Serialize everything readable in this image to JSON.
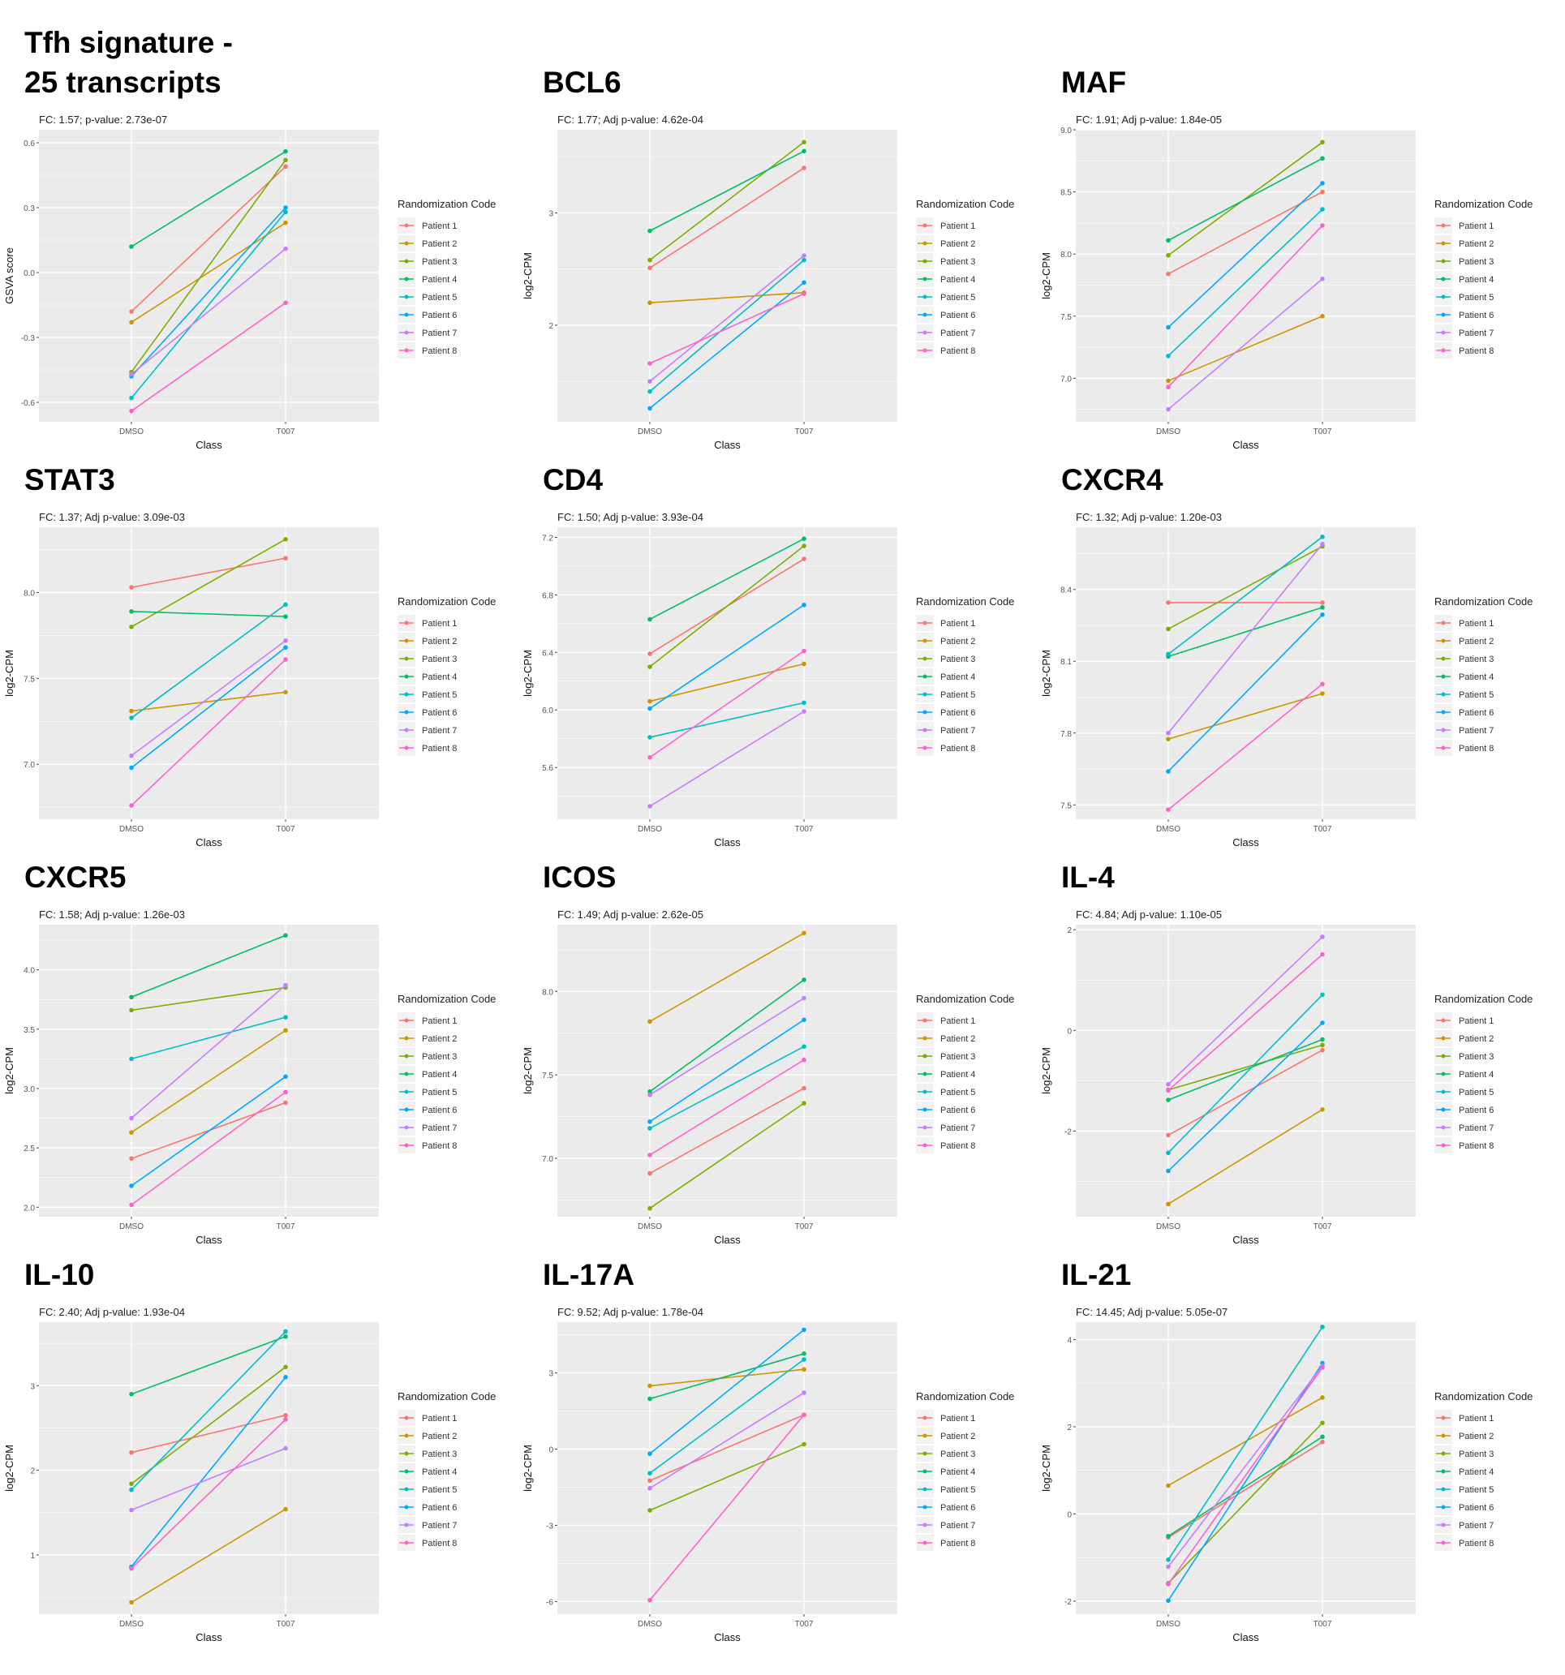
{
  "colors": [
    "#F8766D",
    "#CD9600",
    "#7CAE00",
    "#00BE67",
    "#00BFC4",
    "#00A9FF",
    "#C77CFF",
    "#FF61CC"
  ],
  "legend_title": "Randomization Code",
  "legend": [
    "Patient 1",
    "Patient 2",
    "Patient 3",
    "Patient 4",
    "Patient 5",
    "Patient 6",
    "Patient 7",
    "Patient 8"
  ],
  "xlabel": "Class",
  "categories": [
    "DMSO",
    "T007"
  ],
  "chart_data": [
    {
      "type": "line",
      "title": [
        "Tfh signature -",
        "25 transcripts"
      ],
      "subtitle": "FC: 1.57; p-value: 2.73e-07",
      "ylabel": "GSVA score",
      "ylim": [
        -0.69,
        0.66
      ],
      "yticks": [
        -0.6,
        -0.3,
        0.0,
        0.3,
        0.6
      ],
      "ytick_labels": [
        "-0.6",
        "-0.3",
        "0.0",
        "0.3",
        "0.6"
      ],
      "series": [
        [
          -0.18,
          0.49
        ],
        [
          -0.23,
          0.23
        ],
        [
          -0.46,
          0.52
        ],
        [
          0.12,
          0.56
        ],
        [
          -0.58,
          0.28
        ],
        [
          -0.48,
          0.3
        ],
        [
          -0.47,
          0.11
        ],
        [
          -0.64,
          -0.14
        ]
      ]
    },
    {
      "type": "line",
      "title": [
        "BCL6"
      ],
      "subtitle": "FC: 1.77; Adj p-value: 4.62e-04",
      "ylabel": "log2-CPM",
      "ylim": [
        1.14,
        3.74
      ],
      "yticks": [
        2,
        3
      ],
      "ytick_labels": [
        "2",
        "3"
      ],
      "series": [
        [
          2.51,
          3.4
        ],
        [
          2.2,
          2.29
        ],
        [
          2.58,
          3.63
        ],
        [
          2.84,
          3.55
        ],
        [
          1.41,
          2.58
        ],
        [
          1.26,
          2.38
        ],
        [
          1.5,
          2.62
        ],
        [
          1.66,
          2.28
        ]
      ]
    },
    {
      "type": "line",
      "title": [
        "MAF"
      ],
      "subtitle": "FC: 1.91; Adj p-value: 1.84e-05",
      "ylabel": "log2-CPM",
      "ylim": [
        6.65,
        9.0
      ],
      "yticks": [
        7.0,
        7.5,
        8.0,
        8.5,
        9.0
      ],
      "ytick_labels": [
        "7.0",
        "7.5",
        "8.0",
        "8.5",
        "9.0"
      ],
      "series": [
        [
          7.84,
          8.5
        ],
        [
          6.98,
          7.5
        ],
        [
          7.99,
          8.9
        ],
        [
          8.11,
          8.77
        ],
        [
          7.18,
          8.36
        ],
        [
          7.41,
          8.57
        ],
        [
          6.75,
          7.8
        ],
        [
          6.93,
          8.23
        ]
      ]
    },
    {
      "type": "line",
      "title": [
        "STAT3"
      ],
      "subtitle": "FC: 1.37; Adj p-value: 3.09e-03",
      "ylabel": "log2-CPM",
      "ylim": [
        6.68,
        8.38
      ],
      "yticks": [
        7.0,
        7.5,
        8.0
      ],
      "ytick_labels": [
        "7.0",
        "7.5",
        "8.0"
      ],
      "series": [
        [
          8.03,
          8.2
        ],
        [
          7.31,
          7.42
        ],
        [
          7.8,
          8.31
        ],
        [
          7.89,
          7.86
        ],
        [
          7.27,
          7.93
        ],
        [
          6.98,
          7.68
        ],
        [
          7.05,
          7.72
        ],
        [
          6.76,
          7.61
        ]
      ]
    },
    {
      "type": "line",
      "title": [
        "CD4"
      ],
      "subtitle": "FC: 1.50; Adj p-value: 3.93e-04",
      "ylabel": "log2-CPM",
      "ylim": [
        5.24,
        7.27
      ],
      "yticks": [
        5.6,
        6.0,
        6.4,
        6.8,
        7.2
      ],
      "ytick_labels": [
        "5.6",
        "6.0",
        "6.4",
        "6.8",
        "7.2"
      ],
      "series": [
        [
          6.39,
          7.05
        ],
        [
          6.06,
          6.32
        ],
        [
          6.3,
          7.14
        ],
        [
          6.63,
          7.19
        ],
        [
          5.81,
          6.05
        ],
        [
          6.01,
          6.73
        ],
        [
          5.33,
          5.99
        ],
        [
          5.67,
          6.41
        ]
      ]
    },
    {
      "type": "line",
      "title": [
        "CXCR4"
      ],
      "subtitle": "FC: 1.32; Adj p-value: 1.20e-03",
      "ylabel": "log2-CPM",
      "ylim": [
        7.44,
        8.66
      ],
      "yticks": [
        7.5,
        7.8,
        8.1,
        8.4
      ],
      "ytick_labels": [
        "7.5",
        "7.8",
        "8.1",
        "8.4"
      ],
      "series": [
        [
          8.345,
          8.345
        ],
        [
          7.775,
          7.965
        ],
        [
          8.235,
          8.58
        ],
        [
          8.12,
          8.325
        ],
        [
          8.13,
          8.62
        ],
        [
          7.64,
          8.295
        ],
        [
          7.8,
          8.59
        ],
        [
          7.48,
          8.005
        ]
      ]
    },
    {
      "type": "line",
      "title": [
        "CXCR5"
      ],
      "subtitle": "FC: 1.58; Adj p-value: 1.26e-03",
      "ylabel": "log2-CPM",
      "ylim": [
        1.92,
        4.38
      ],
      "yticks": [
        2.0,
        2.5,
        3.0,
        3.5,
        4.0
      ],
      "ytick_labels": [
        "2.0",
        "2.5",
        "3.0",
        "3.5",
        "4.0"
      ],
      "series": [
        [
          2.41,
          2.88
        ],
        [
          2.63,
          3.49
        ],
        [
          3.66,
          3.85
        ],
        [
          3.77,
          4.29
        ],
        [
          3.25,
          3.6
        ],
        [
          2.18,
          3.1
        ],
        [
          2.75,
          3.87
        ],
        [
          2.02,
          2.97
        ]
      ]
    },
    {
      "type": "line",
      "title": [
        "ICOS"
      ],
      "subtitle": "FC: 1.49; Adj p-value: 2.62e-05",
      "ylabel": "log2-CPM",
      "ylim": [
        6.65,
        8.4
      ],
      "yticks": [
        7.0,
        7.5,
        8.0
      ],
      "ytick_labels": [
        "7.0",
        "7.5",
        "8.0"
      ],
      "series": [
        [
          6.91,
          7.42
        ],
        [
          7.82,
          8.35
        ],
        [
          6.7,
          7.33
        ],
        [
          7.4,
          8.07
        ],
        [
          7.18,
          7.67
        ],
        [
          7.22,
          7.83
        ],
        [
          7.38,
          7.96
        ],
        [
          7.02,
          7.59
        ]
      ]
    },
    {
      "type": "line",
      "title": [
        "IL-4"
      ],
      "subtitle": "FC: 4.84; Adj p-value: 1.10e-05",
      "ylabel": "log2-CPM",
      "ylim": [
        -3.7,
        2.1
      ],
      "yticks": [
        -2,
        0,
        2
      ],
      "ytick_labels": [
        "-2",
        "0",
        "2"
      ],
      "series": [
        [
          -2.08,
          -0.39
        ],
        [
          -3.45,
          -1.57
        ],
        [
          -1.18,
          -0.29
        ],
        [
          -1.38,
          -0.18
        ],
        [
          -2.43,
          0.71
        ],
        [
          -2.79,
          0.15
        ],
        [
          -1.07,
          1.86
        ],
        [
          -1.19,
          1.51
        ]
      ]
    },
    {
      "type": "line",
      "title": [
        "IL-10"
      ],
      "subtitle": "FC: 2.40; Adj p-value: 1.93e-04",
      "ylabel": "log2-CPM",
      "ylim": [
        0.3,
        3.75
      ],
      "yticks": [
        1,
        2,
        3
      ],
      "ytick_labels": [
        "1",
        "2",
        "3"
      ],
      "series": [
        [
          2.21,
          2.65
        ],
        [
          0.44,
          1.54
        ],
        [
          1.84,
          3.22
        ],
        [
          2.9,
          3.58
        ],
        [
          1.77,
          3.64
        ],
        [
          0.86,
          3.1
        ],
        [
          1.53,
          2.26
        ],
        [
          0.84,
          2.6
        ]
      ]
    },
    {
      "type": "line",
      "title": [
        "IL-17A"
      ],
      "subtitle": "FC: 9.52; Adj p-value: 1.78e-04",
      "ylabel": "log2-CPM",
      "ylim": [
        -6.5,
        5.0
      ],
      "yticks": [
        -6,
        -3,
        0,
        3
      ],
      "ytick_labels": [
        "-6",
        "-3",
        "0",
        "3"
      ],
      "series": [
        [
          -1.24,
          1.35
        ],
        [
          2.49,
          3.14
        ],
        [
          -2.41,
          0.19
        ],
        [
          1.98,
          3.76
        ],
        [
          -0.95,
          3.53
        ],
        [
          -0.18,
          4.7
        ],
        [
          -1.54,
          2.22
        ],
        [
          -5.95,
          1.35
        ]
      ]
    },
    {
      "type": "line",
      "title": [
        "IL-21"
      ],
      "subtitle": "FC: 14.45; Adj p-value: 5.05e-07",
      "ylabel": "log2-CPM",
      "ylim": [
        -2.3,
        4.4
      ],
      "yticks": [
        -2,
        0,
        2,
        4
      ],
      "ytick_labels": [
        "-2",
        "0",
        "2",
        "4"
      ],
      "series": [
        [
          -0.54,
          1.65
        ],
        [
          0.65,
          2.67
        ],
        [
          -1.59,
          2.09
        ],
        [
          -0.51,
          1.77
        ],
        [
          -1.05,
          4.29
        ],
        [
          -1.99,
          3.46
        ],
        [
          -1.21,
          3.4
        ],
        [
          -1.61,
          3.36
        ]
      ]
    }
  ]
}
